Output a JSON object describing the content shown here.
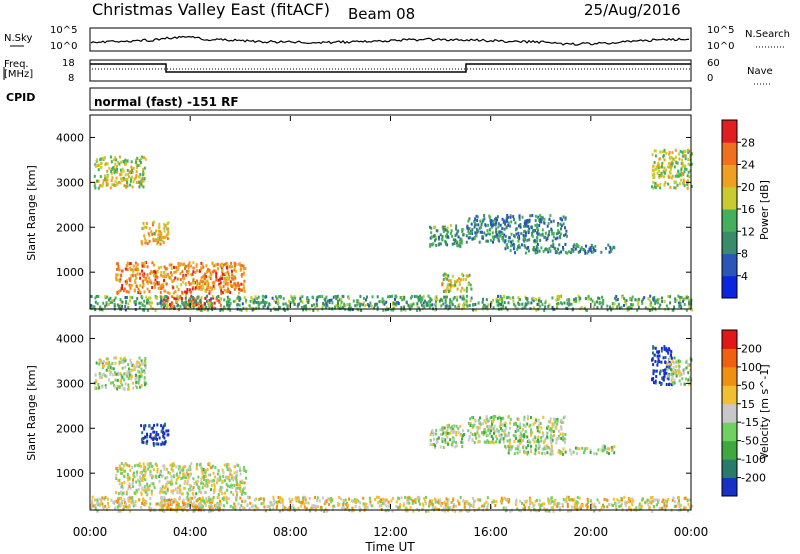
{
  "header": {
    "station": "Christmas Valley East (fitACF)",
    "beam": "Beam 08",
    "date": "25/Aug/2016"
  },
  "panels": {
    "nsky": {
      "left_label": "N.Sky",
      "right_label": "N.Search",
      "top_tick": "10^5",
      "bottom_tick": "10^0",
      "right_top_tick": "10^5",
      "right_bottom_tick": "10^0"
    },
    "freq": {
      "left_label_1": "Freq.",
      "left_label_2": "[MHz]",
      "left_top_tick": "18",
      "left_bottom_tick": "8",
      "right_label": "Nave",
      "right_top_tick": "60",
      "right_bottom_tick": "0"
    },
    "cpid": {
      "label": "CPID",
      "text": "normal (fast) -151 RF"
    }
  },
  "chart_data": [
    {
      "type": "heatmap",
      "name": "power",
      "ylabel": "Slant Range [km]",
      "ylim": [
        180,
        4500
      ],
      "yticks": [
        1000,
        2000,
        3000,
        4000
      ],
      "xlim": [
        0,
        24
      ],
      "colorbar": {
        "label": "Power [dB]",
        "ticks": [
          "4",
          "8",
          "12",
          "16",
          "20",
          "24",
          "28"
        ],
        "colors": [
          "#0a24e0",
          "#2a56b8",
          "#3a8a6c",
          "#44b05c",
          "#c8cc30",
          "#f0a020",
          "#f07020",
          "#e02020"
        ]
      },
      "regions": [
        {
          "t": [
            0.15,
            2.2
          ],
          "r": [
            2900,
            3600
          ],
          "level": 0.55
        },
        {
          "t": [
            2.0,
            3.1
          ],
          "r": [
            1650,
            2150
          ],
          "level": 0.65
        },
        {
          "t": [
            1.0,
            6.2
          ],
          "r": [
            550,
            1250
          ],
          "level": 0.75
        },
        {
          "t": [
            2.8,
            5.2
          ],
          "r": [
            200,
            500
          ],
          "level": 0.85
        },
        {
          "t": [
            0,
            24
          ],
          "r": [
            180,
            500
          ],
          "level": 0.4
        },
        {
          "t": [
            13.5,
            14.9
          ],
          "r": [
            1600,
            2100
          ],
          "level": 0.35
        },
        {
          "t": [
            15.0,
            19.0
          ],
          "r": [
            1700,
            2300
          ],
          "level": 0.3
        },
        {
          "t": [
            16.5,
            21.0
          ],
          "r": [
            1450,
            1650
          ],
          "level": 0.3
        },
        {
          "t": [
            14.0,
            15.2
          ],
          "r": [
            600,
            1000
          ],
          "level": 0.6
        },
        {
          "t": [
            22.4,
            24.0
          ],
          "r": [
            2900,
            3750
          ],
          "level": 0.55
        }
      ]
    },
    {
      "type": "heatmap",
      "name": "velocity",
      "ylabel": "Slant Range [km]",
      "ylim": [
        180,
        4500
      ],
      "yticks": [
        1000,
        2000,
        3000,
        4000
      ],
      "xlim": [
        0,
        24
      ],
      "xlabel": "Time UT",
      "xticks": [
        "00:00",
        "04:00",
        "08:00",
        "12:00",
        "16:00",
        "20:00",
        "00:00"
      ],
      "colorbar": {
        "label": "Velocity [m s^-1]",
        "ticks": [
          "200",
          "100",
          "50",
          "15",
          "-15",
          "-50",
          "-100",
          "-200"
        ],
        "colors": [
          "#1830c8",
          "#2a7a6a",
          "#40a840",
          "#70d060",
          "#c8c8c8",
          "#f0c030",
          "#f09010",
          "#f06010",
          "#e01818"
        ]
      },
      "regions": [
        {
          "t": [
            0.15,
            2.2
          ],
          "r": [
            2900,
            3600
          ],
          "level": 0.45
        },
        {
          "t": [
            2.0,
            3.1
          ],
          "r": [
            1650,
            2150
          ],
          "level": 0.05
        },
        {
          "t": [
            1.0,
            6.2
          ],
          "r": [
            550,
            1250
          ],
          "level": 0.5
        },
        {
          "t": [
            2.8,
            5.2
          ],
          "r": [
            200,
            500
          ],
          "level": 0.65
        },
        {
          "t": [
            0,
            24
          ],
          "r": [
            180,
            500
          ],
          "level": 0.55
        },
        {
          "t": [
            13.5,
            14.9
          ],
          "r": [
            1600,
            2100
          ],
          "level": 0.45
        },
        {
          "t": [
            15.0,
            19.0
          ],
          "r": [
            1700,
            2300
          ],
          "level": 0.45
        },
        {
          "t": [
            16.5,
            21.0
          ],
          "r": [
            1450,
            1650
          ],
          "level": 0.45
        },
        {
          "t": [
            22.4,
            23.2
          ],
          "r": [
            3000,
            3900
          ],
          "level": 0.02
        },
        {
          "t": [
            23.0,
            24.0
          ],
          "r": [
            3000,
            3600
          ],
          "level": 0.45
        }
      ]
    }
  ]
}
